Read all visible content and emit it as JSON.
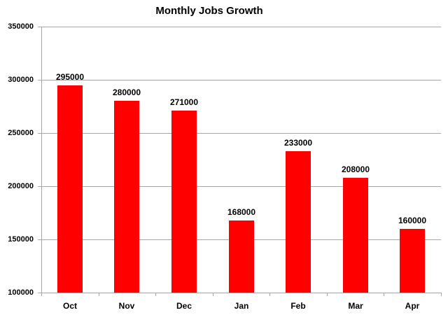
{
  "chart_data": {
    "type": "bar",
    "title": "Monthly Jobs Growth",
    "categories": [
      "Oct",
      "Nov",
      "Dec",
      "Jan",
      "Feb",
      "Mar",
      "Apr"
    ],
    "values": [
      295000,
      280000,
      271000,
      168000,
      233000,
      208000,
      160000
    ],
    "data_labels": [
      "295000",
      "280000",
      "271000",
      "168000",
      "233000",
      "208000",
      "160000"
    ],
    "xlabel": "",
    "ylabel": "",
    "ylim": [
      100000,
      350000
    ],
    "ytick_interval": 50000,
    "ytick_labels": [
      "100000",
      "150000",
      "200000",
      "250000",
      "300000",
      "350000"
    ],
    "grid": "horizontal",
    "legend_position": "none"
  },
  "colors": {
    "background": "#ffffff",
    "bar": "#ff0000",
    "gridline": "#a6a6a6",
    "axis": "#a6a6a6",
    "text": "#000000"
  }
}
